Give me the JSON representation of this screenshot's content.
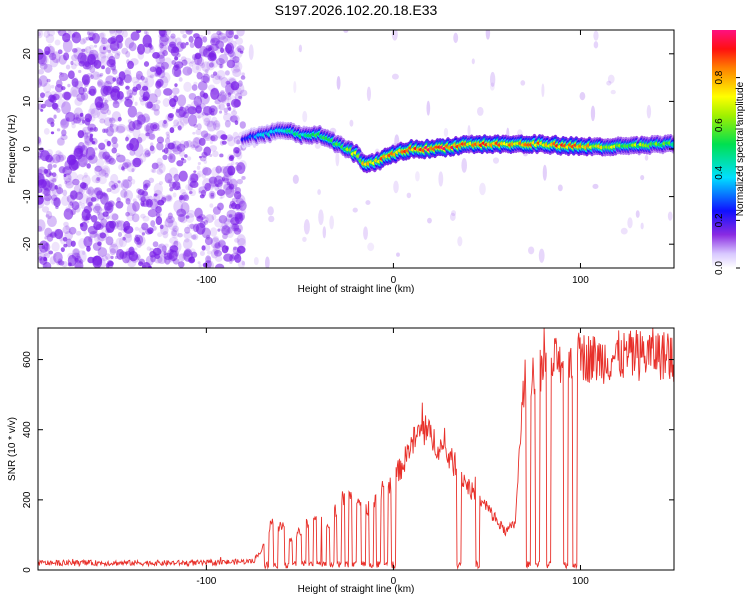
{
  "title": "S197.2026.102.20.18.E33",
  "colors": {
    "snr_line": "#e8302a",
    "dots": "#7a1fe8",
    "axis": "#000000"
  },
  "chart_data": [
    {
      "type": "heatmap",
      "name": "spectrogram",
      "xlabel": "Height of straight line (km)",
      "ylabel": "Frequency (Hz)",
      "xlim": [
        -190,
        150
      ],
      "ylim": [
        -25,
        25
      ],
      "x_ticks": [
        -100,
        0,
        100
      ],
      "x_tick_labels": [
        "-100",
        "0",
        "100"
      ],
      "y_ticks": [
        -20,
        -10,
        0,
        10,
        20
      ],
      "y_tick_labels": [
        "-20",
        "-10",
        "0",
        "10",
        "20"
      ],
      "noise_region_end_km": -80,
      "ridge": {
        "x": [
          -80,
          -70,
          -60,
          -50,
          -40,
          -30,
          -20,
          -15,
          -10,
          -5,
          0,
          10,
          20,
          40,
          60,
          80,
          100,
          120,
          150
        ],
        "freq": [
          2,
          3,
          4,
          3,
          3,
          1,
          -1,
          -3,
          -3,
          -2,
          -1,
          0,
          0,
          1,
          1,
          1,
          0.5,
          0.5,
          1
        ],
        "amplitude": [
          0.25,
          0.4,
          0.45,
          0.5,
          0.55,
          0.6,
          0.7,
          0.8,
          0.85,
          0.9,
          0.9,
          0.95,
          1.0,
          0.9,
          0.85,
          0.9,
          0.85,
          0.7,
          0.6
        ]
      },
      "colorbar": {
        "label": "Normalized spectral amplitude",
        "range": [
          0,
          1
        ],
        "ticks": [
          0.0,
          0.2,
          0.4,
          0.6,
          0.8
        ],
        "tick_labels": [
          "0.0",
          "0.2",
          "0.4",
          "0.6",
          "0.8"
        ]
      }
    },
    {
      "type": "line",
      "name": "snr",
      "xlabel": "Height of straight line (km)",
      "ylabel": "SNR (10 * v/v)",
      "xlim": [
        -190,
        150
      ],
      "ylim": [
        0,
        690
      ],
      "x_ticks": [
        -100,
        0,
        100
      ],
      "x_tick_labels": [
        "-100",
        "0",
        "100"
      ],
      "y_ticks": [
        0,
        200,
        400,
        600
      ],
      "y_tick_labels": [
        "0",
        "200",
        "400",
        "600"
      ],
      "series": [
        {
          "name": "SNR",
          "x": [
            -190,
            -100,
            -75,
            -70,
            -65,
            -60,
            -55,
            -50,
            -45,
            -40,
            -35,
            -30,
            -25,
            -20,
            -15,
            -10,
            -5,
            0,
            5,
            10,
            15,
            20,
            25,
            30,
            35,
            40,
            45,
            50,
            55,
            60,
            65,
            70,
            80,
            90,
            100,
            110,
            120,
            130,
            140,
            150
          ],
          "y": [
            20,
            20,
            25,
            60,
            140,
            120,
            90,
            110,
            140,
            160,
            130,
            180,
            200,
            210,
            170,
            190,
            220,
            260,
            300,
            360,
            400,
            380,
            350,
            320,
            280,
            240,
            200,
            180,
            140,
            110,
            130,
            550,
            580,
            600,
            610,
            600,
            610,
            610,
            620,
            600
          ],
          "dropouts_x": [
            -68,
            -63,
            -57,
            -53,
            -48,
            -44,
            -40,
            -37,
            -33,
            -29,
            -25,
            -21,
            -16,
            -12,
            -8,
            -4,
            0,
            35,
            45,
            72,
            77,
            83,
            92,
            97
          ]
        }
      ]
    }
  ]
}
